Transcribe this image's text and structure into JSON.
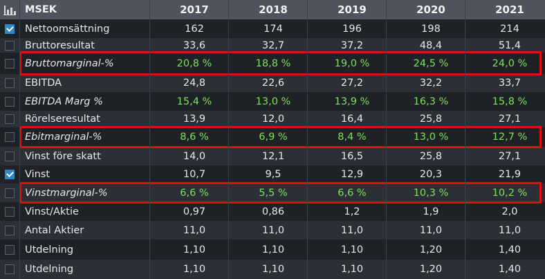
{
  "header": {
    "unit_label": "MSEK",
    "years": [
      "2017",
      "2018",
      "2019",
      "2020",
      "2021"
    ],
    "icon": "bar-chart-icon"
  },
  "rows": [
    {
      "label": "Nettoomsättning",
      "checked": true,
      "italic": false,
      "green": false,
      "values": [
        "162",
        "174",
        "196",
        "198",
        "214"
      ]
    },
    {
      "label": "Bruttoresultat",
      "checked": false,
      "italic": false,
      "green": false,
      "values": [
        "33,6",
        "32,7",
        "37,2",
        "48,4",
        "51,4"
      ]
    },
    {
      "label": "Bruttomarginal-%",
      "checked": false,
      "italic": true,
      "green": true,
      "highlighted": true,
      "values": [
        "20,8 %",
        "18,8 %",
        "19,0 %",
        "24,5 %",
        "24,0 %"
      ]
    },
    {
      "label": "EBITDA",
      "checked": false,
      "italic": false,
      "green": false,
      "values": [
        "24,8",
        "22,6",
        "27,2",
        "32,2",
        "33,7"
      ]
    },
    {
      "label": "EBITDA Marg %",
      "checked": false,
      "italic": true,
      "green": true,
      "values": [
        "15,4 %",
        "13,0 %",
        "13,9 %",
        "16,3 %",
        "15,8 %"
      ]
    },
    {
      "label": "Rörelseresultat",
      "checked": false,
      "italic": false,
      "green": false,
      "values": [
        "13,9",
        "12,0",
        "16,4",
        "25,8",
        "27,1"
      ]
    },
    {
      "label": "Ebitmarginal-%",
      "checked": false,
      "italic": true,
      "green": true,
      "highlighted": true,
      "values": [
        "8,6 %",
        "6,9 %",
        "8,4 %",
        "13,0 %",
        "12,7 %"
      ]
    },
    {
      "label": "Vinst före skatt",
      "checked": false,
      "italic": false,
      "green": false,
      "values": [
        "14,0",
        "12,1",
        "16,5",
        "25,8",
        "27,1"
      ]
    },
    {
      "label": "Vinst",
      "checked": true,
      "italic": false,
      "green": false,
      "values": [
        "10,7",
        "9,5",
        "12,9",
        "20,3",
        "21,9"
      ]
    },
    {
      "label": "Vinstmarginal-%",
      "checked": false,
      "italic": true,
      "green": true,
      "highlighted": true,
      "values": [
        "6,6 %",
        "5,5 %",
        "6,6 %",
        "10,3 %",
        "10,2 %"
      ]
    },
    {
      "label": "Vinst/Aktie",
      "checked": false,
      "italic": false,
      "green": false,
      "values": [
        "0,97",
        "0,86",
        "1,2",
        "1,9",
        "2,0"
      ]
    },
    {
      "label": "Antal Aktier",
      "checked": false,
      "italic": false,
      "green": false,
      "values": [
        "11,0",
        "11,0",
        "11,0",
        "11,0",
        "11,0"
      ]
    },
    {
      "label": "Utdelning",
      "checked": false,
      "italic": false,
      "green": false,
      "values": [
        "1,10",
        "1,10",
        "1,10",
        "1,20",
        "1,40"
      ]
    },
    {
      "label": "Utdelning",
      "checked": false,
      "italic": false,
      "green": false,
      "values": [
        "1,10",
        "1,10",
        "1,10",
        "1,20",
        "1,40"
      ]
    }
  ],
  "colors": {
    "highlight_border": "#e01010",
    "positive_green": "#7fe05a",
    "checkbox_checked": "#2f88c4"
  }
}
